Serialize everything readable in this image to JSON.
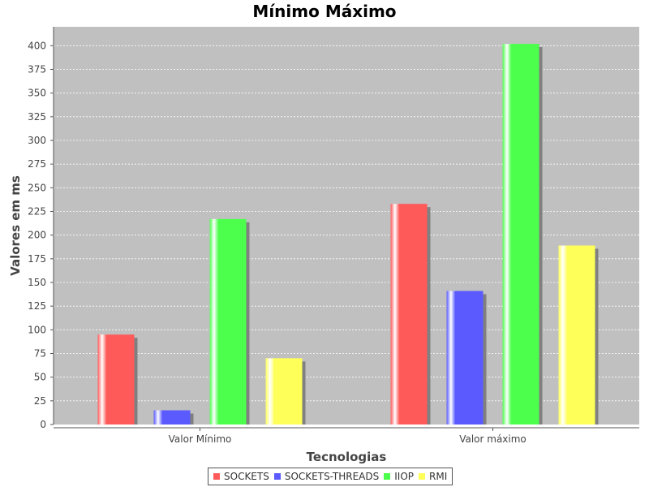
{
  "chart_data": {
    "type": "bar",
    "title": "Mínimo Máximo",
    "xlabel": "Tecnologias",
    "ylabel": "Valores em ms",
    "categories": [
      "Valor Mínimo",
      "Valor máximo"
    ],
    "series": [
      {
        "name": "SOCKETS",
        "color": "#ff5a5a",
        "values": [
          95,
          233
        ]
      },
      {
        "name": "SOCKETS-THREADS",
        "color": "#5a5aff",
        "values": [
          15,
          141
        ]
      },
      {
        "name": "IIOP",
        "color": "#4dff4d",
        "values": [
          217,
          402
        ]
      },
      {
        "name": "RMI",
        "color": "#ffff5a",
        "values": [
          70,
          189
        ]
      }
    ],
    "ylim": [
      0,
      420
    ],
    "yticks": [
      0,
      25,
      50,
      75,
      100,
      125,
      150,
      175,
      200,
      225,
      250,
      275,
      300,
      325,
      350,
      375,
      400
    ],
    "grid": true,
    "plot_background": "#c0c0c0",
    "legend_position": "bottom"
  }
}
